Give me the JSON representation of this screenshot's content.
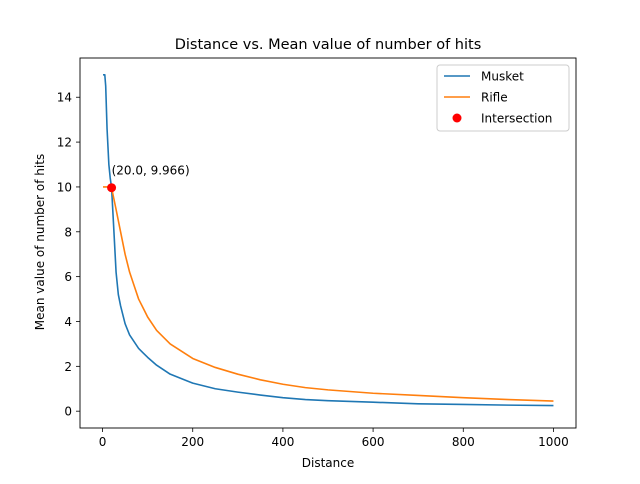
{
  "chart_data": {
    "type": "line",
    "title": "Distance vs. Mean value of number of hits",
    "xlabel": "Distance",
    "ylabel": "Mean value of number of hits",
    "xlim": [
      -50,
      1050
    ],
    "ylim": [
      -0.75,
      15.75
    ],
    "x_ticks": [
      0,
      200,
      400,
      600,
      800,
      1000
    ],
    "y_ticks": [
      0,
      2,
      4,
      6,
      8,
      10,
      12,
      14
    ],
    "grid": false,
    "legend_position": "upper-right",
    "series": [
      {
        "name": "Musket",
        "color": "#1f77b4",
        "points": [
          [
            1,
            15.0
          ],
          [
            5,
            15.0
          ],
          [
            7,
            14.5
          ],
          [
            10,
            12.6
          ],
          [
            14,
            11.0
          ],
          [
            17,
            10.4
          ],
          [
            20,
            9.966
          ],
          [
            25,
            8.1
          ],
          [
            30,
            6.2
          ],
          [
            35,
            5.2
          ],
          [
            40,
            4.7
          ],
          [
            50,
            3.9
          ],
          [
            60,
            3.4
          ],
          [
            70,
            3.1
          ],
          [
            80,
            2.8
          ],
          [
            90,
            2.6
          ],
          [
            100,
            2.4
          ],
          [
            120,
            2.05
          ],
          [
            150,
            1.65
          ],
          [
            200,
            1.25
          ],
          [
            250,
            1.0
          ],
          [
            300,
            0.85
          ],
          [
            350,
            0.72
          ],
          [
            400,
            0.6
          ],
          [
            450,
            0.52
          ],
          [
            500,
            0.47
          ],
          [
            600,
            0.4
          ],
          [
            700,
            0.33
          ],
          [
            800,
            0.3
          ],
          [
            900,
            0.27
          ],
          [
            1000,
            0.25
          ]
        ]
      },
      {
        "name": "Rifle",
        "color": "#ff7f0e",
        "points": [
          [
            1,
            10.0
          ],
          [
            10,
            10.0
          ],
          [
            20,
            9.966
          ],
          [
            30,
            9.0
          ],
          [
            40,
            8.0
          ],
          [
            50,
            7.0
          ],
          [
            60,
            6.2
          ],
          [
            70,
            5.6
          ],
          [
            80,
            5.0
          ],
          [
            90,
            4.6
          ],
          [
            100,
            4.2
          ],
          [
            120,
            3.6
          ],
          [
            150,
            3.0
          ],
          [
            200,
            2.35
          ],
          [
            250,
            1.95
          ],
          [
            300,
            1.65
          ],
          [
            350,
            1.4
          ],
          [
            400,
            1.2
          ],
          [
            450,
            1.05
          ],
          [
            500,
            0.95
          ],
          [
            600,
            0.8
          ],
          [
            700,
            0.7
          ],
          [
            800,
            0.6
          ],
          [
            900,
            0.52
          ],
          [
            1000,
            0.45
          ]
        ]
      }
    ],
    "intersection": {
      "name": "Intersection",
      "color": "#ff0000",
      "x": 20.0,
      "y": 9.966,
      "label": "(20.0, 9.966)"
    }
  }
}
